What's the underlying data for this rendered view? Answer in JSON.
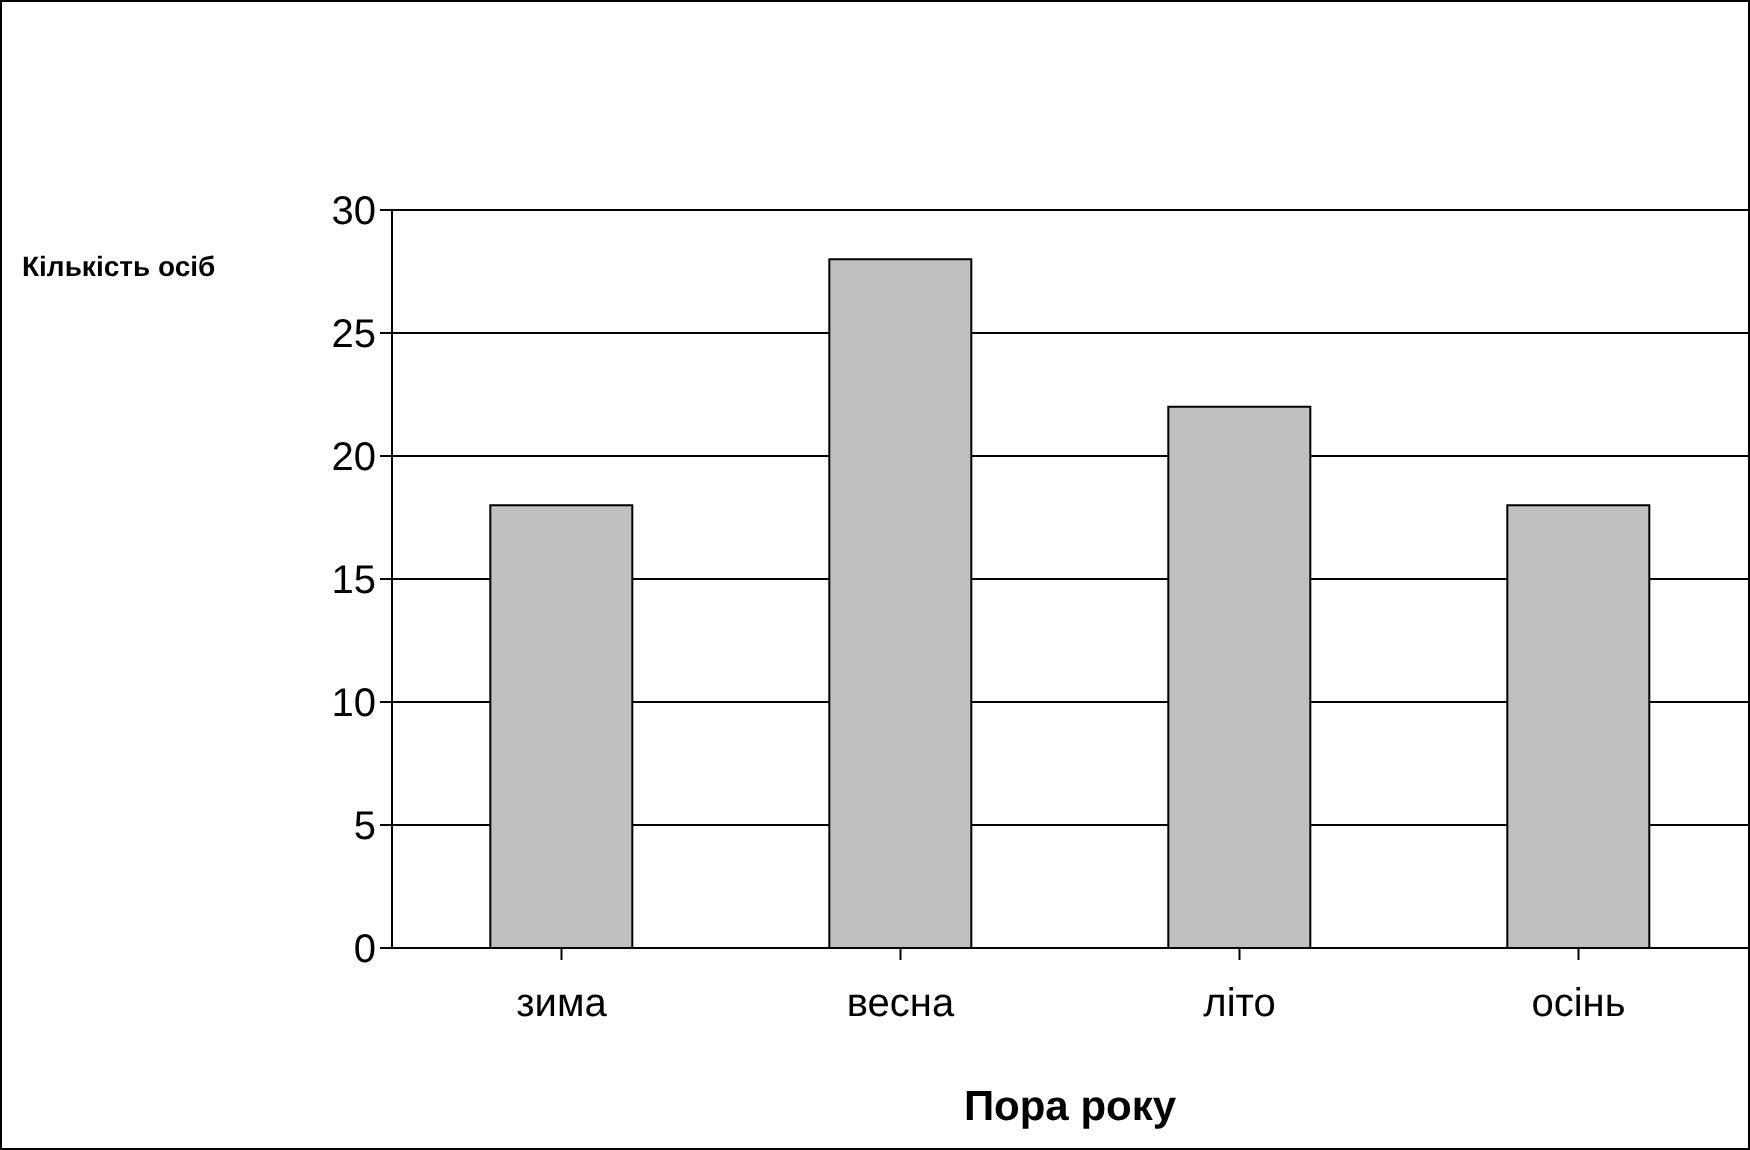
{
  "chart_data": {
    "type": "bar",
    "xlabel": "Пора року",
    "ylabel": "Кількість осіб",
    "categories": [
      "зима",
      "весна",
      "літо",
      "осінь"
    ],
    "values": [
      18,
      28,
      22,
      18
    ],
    "color": "#c0c0c0",
    "ylim": [
      0,
      30
    ],
    "yticks": [
      0,
      5,
      10,
      15,
      20,
      25,
      30
    ],
    "grid": "y"
  }
}
